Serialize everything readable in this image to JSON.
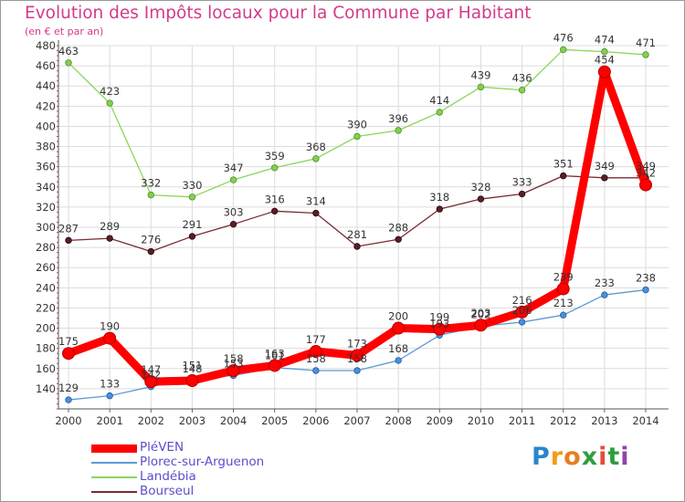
{
  "chart_data": {
    "type": "line",
    "title": "Evolution des Impôts locaux pour la Commune par Habitant",
    "subtitle": "(en € et par an)",
    "xlabel": "",
    "ylabel": "",
    "x": [
      "2000",
      "2001",
      "2002",
      "2003",
      "2004",
      "2005",
      "2006",
      "2007",
      "2008",
      "2009",
      "2010",
      "2011",
      "2012",
      "2013",
      "2014"
    ],
    "ylim": [
      120,
      480
    ],
    "yticks": [
      140,
      160,
      180,
      200,
      220,
      240,
      260,
      280,
      300,
      320,
      340,
      360,
      380,
      400,
      420,
      440,
      460,
      480
    ],
    "grid": true,
    "legend_position": "bottom-left",
    "series": [
      {
        "name": "PléVEN",
        "color": "#ff0000",
        "style": "thick",
        "values": [
          175,
          190,
          147,
          148,
          158,
          163,
          177,
          173,
          200,
          199,
          203,
          216,
          239,
          454,
          342
        ],
        "labels": [
          "175",
          "190",
          "147",
          "148",
          "158",
          "163",
          "177",
          "173",
          "200",
          "199",
          "203",
          "216",
          "239",
          "454",
          "342"
        ]
      },
      {
        "name": "Plorec-sur-Arguenon",
        "color": "#5b9bd5",
        "style": "thin",
        "values": [
          129,
          133,
          142,
          151,
          153,
          161,
          158,
          158,
          168,
          193,
          202,
          206,
          213,
          233,
          238
        ],
        "labels": [
          "129",
          "133",
          "142",
          "151",
          "153",
          "161",
          "158",
          "158",
          "168",
          "193",
          "202",
          "206",
          "213",
          "233",
          "238"
        ]
      },
      {
        "name": "Landébia",
        "color": "#8cd55a",
        "style": "thin",
        "values": [
          463,
          423,
          332,
          330,
          347,
          359,
          368,
          390,
          396,
          414,
          439,
          436,
          476,
          474,
          471
        ],
        "labels": [
          "463",
          "423",
          "332",
          "330",
          "347",
          "359",
          "368",
          "390",
          "396",
          "414",
          "439",
          "436",
          "476",
          "474",
          "471"
        ]
      },
      {
        "name": "Bourseul",
        "color": "#7a2a32",
        "style": "thin",
        "values": [
          287,
          289,
          276,
          291,
          303,
          316,
          314,
          281,
          288,
          318,
          328,
          333,
          351,
          349,
          349
        ],
        "labels": [
          "287",
          "289",
          "276",
          "291",
          "303",
          "316",
          "314",
          "281",
          "288",
          "318",
          "328",
          "333",
          "351",
          "349",
          "349"
        ]
      }
    ]
  },
  "brand": {
    "letters": [
      "P",
      "r",
      "o",
      "x",
      "i",
      "t",
      "i"
    ],
    "colors": [
      "#2b86c9",
      "#f39c12",
      "#e67e22",
      "#2e9e3f",
      "#e74c3c",
      "#2e9e3f",
      "#8e44ad"
    ]
  }
}
